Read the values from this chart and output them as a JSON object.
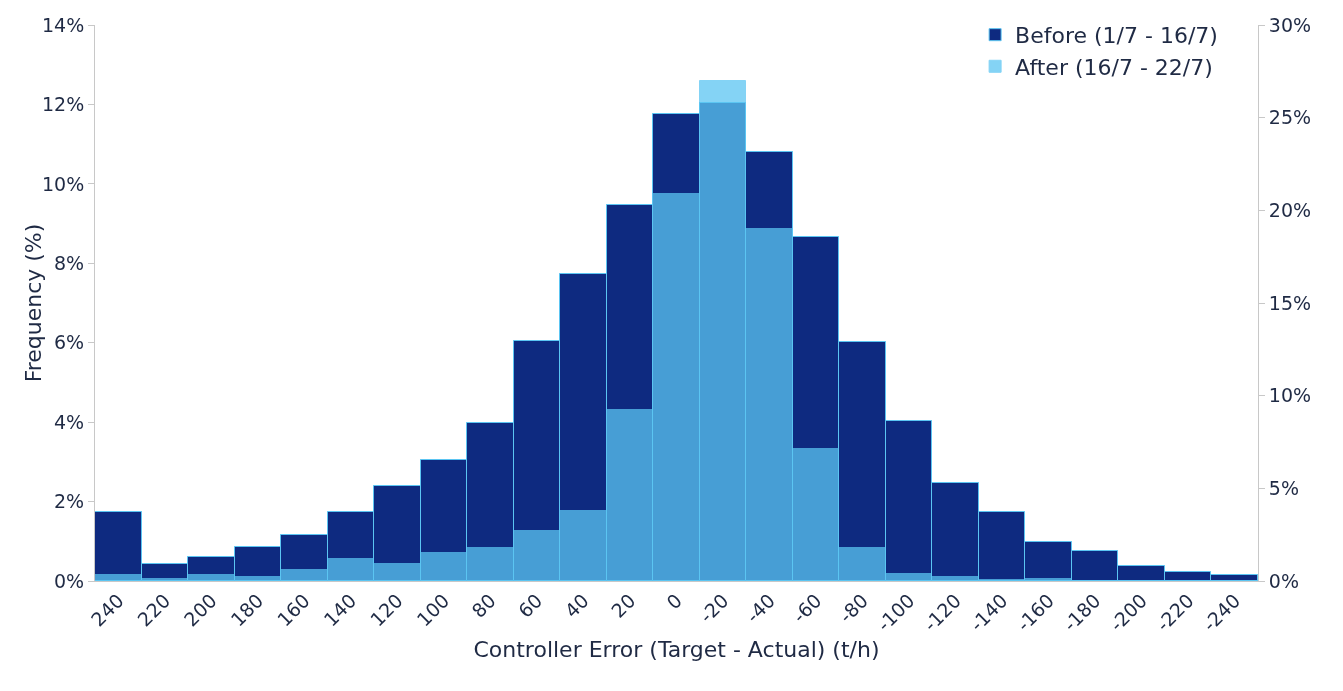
{
  "chart_data": {
    "type": "bar",
    "xlabel": "Controller Error (Target - Actual) (t/h)",
    "ylabel": "Frequency (%)",
    "categories": [
      "240",
      "220",
      "200",
      "180",
      "160",
      "140",
      "120",
      "100",
      "80",
      "60",
      "40",
      "20",
      "0",
      "-20",
      "-40",
      "-60",
      "-80",
      "-100",
      "-120",
      "-140",
      "-160",
      "-180",
      "-200",
      "-220",
      "-240"
    ],
    "series": [
      {
        "name": "Before (1/7 - 16/7)",
        "color": "#0e2a80",
        "values": [
          1.73,
          0.43,
          0.6,
          0.85,
          1.15,
          1.73,
          2.38,
          3.04,
          3.99,
          6.05,
          7.73,
          9.48,
          11.77,
          12.04,
          10.79,
          8.66,
          6.02,
          4.04,
          2.48,
          1.73,
          0.98,
          0.75,
          0.38,
          0.23,
          0.15
        ]
      },
      {
        "name": "After (16/7 - 22/7)",
        "color": "#5bc5f2",
        "axis": "y2",
        "values": [
          0.32,
          0.1,
          0.32,
          0.2,
          0.6,
          1.2,
          0.9,
          1.5,
          1.8,
          2.7,
          3.8,
          9.2,
          20.9,
          27.0,
          19.0,
          7.1,
          1.8,
          0.4,
          0.2,
          0.05,
          0.1,
          0,
          0,
          0,
          0
        ]
      }
    ],
    "ylim": [
      0,
      14
    ],
    "yticks": [
      {
        "value": 0,
        "label": "0%"
      },
      {
        "value": 2,
        "label": "2%"
      },
      {
        "value": 4,
        "label": "4%"
      },
      {
        "value": 6,
        "label": "6%"
      },
      {
        "value": 8,
        "label": "8%"
      },
      {
        "value": 10,
        "label": "10%"
      },
      {
        "value": 12,
        "label": "12%"
      },
      {
        "value": 14,
        "label": "14%"
      }
    ],
    "y2lim": [
      0,
      30
    ],
    "y2ticks": [
      {
        "value": 0,
        "label": "0%"
      },
      {
        "value": 5,
        "label": "5%"
      },
      {
        "value": 10,
        "label": "10%"
      },
      {
        "value": 15,
        "label": "15%"
      },
      {
        "value": 20,
        "label": "20%"
      },
      {
        "value": 25,
        "label": "25%"
      },
      {
        "value": 30,
        "label": "30%"
      }
    ],
    "grid": false,
    "legend": "top right"
  }
}
